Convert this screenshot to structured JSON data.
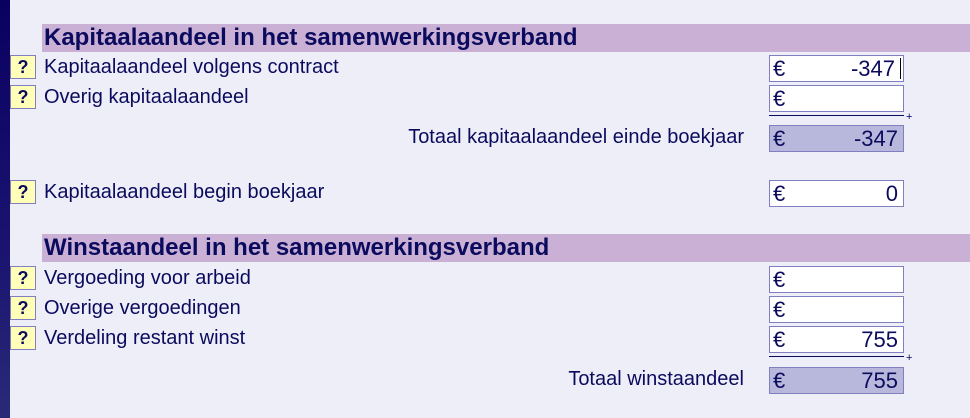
{
  "section1": {
    "title": "Kapitaalaandeel in het samenwerkingsverband",
    "rows": [
      {
        "label": "Kapitaalaandeel volgens contract",
        "currency": "€",
        "value": "-347"
      },
      {
        "label": "Overig kapitaalaandeel",
        "currency": "€",
        "value": ""
      }
    ],
    "total": {
      "label": "Totaal kapitaalaandeel einde boekjaar",
      "currency": "€",
      "value": "-347"
    },
    "begin": {
      "label": "Kapitaalaandeel begin boekjaar",
      "currency": "€",
      "value": "0"
    }
  },
  "section2": {
    "title": "Winstaandeel in het samenwerkingsverband",
    "rows": [
      {
        "label": "Vergoeding voor arbeid",
        "currency": "€",
        "value": ""
      },
      {
        "label": "Overige vergoedingen",
        "currency": "€",
        "value": ""
      },
      {
        "label": "Verdeling restant winst",
        "currency": "€",
        "value": "755"
      }
    ],
    "total": {
      "label": "Totaal winstaandeel",
      "currency": "€",
      "value": "755"
    }
  },
  "help_label": "?",
  "sum_sign": "+"
}
